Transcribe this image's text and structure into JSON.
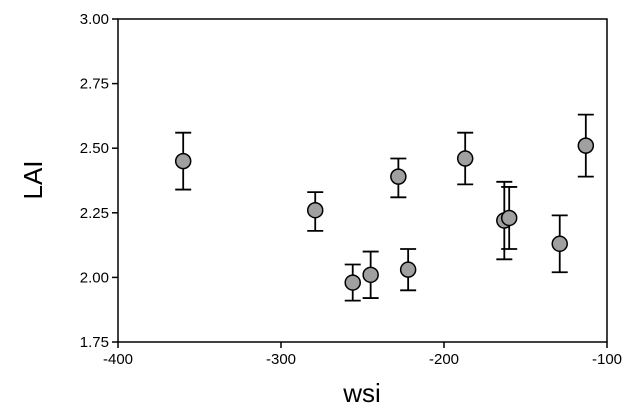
{
  "chart_data": {
    "type": "scatter",
    "title": "",
    "xlabel": "wsi",
    "ylabel": "LAI",
    "xlim": [
      -400,
      -100
    ],
    "ylim": [
      1.75,
      3.0
    ],
    "xticks": [
      -400,
      -300,
      -200,
      -100
    ],
    "yticks": [
      1.75,
      2.0,
      2.25,
      2.5,
      2.75,
      3.0
    ],
    "xtick_labels": [
      "-400",
      "-300",
      "-200",
      "-100"
    ],
    "ytick_labels": [
      "1.75",
      "2.00",
      "2.25",
      "2.50",
      "2.75",
      "3.00"
    ],
    "grid": false,
    "legend": false,
    "marker_color": "#a0a0a0",
    "series": [
      {
        "points": [
          {
            "x": -360,
            "y": 2.45,
            "err_low": 2.34,
            "err_high": 2.56
          },
          {
            "x": -279,
            "y": 2.26,
            "err_low": 2.18,
            "err_high": 2.33
          },
          {
            "x": -256,
            "y": 1.98,
            "err_low": 1.91,
            "err_high": 2.05
          },
          {
            "x": -245,
            "y": 2.01,
            "err_low": 1.92,
            "err_high": 2.1
          },
          {
            "x": -228,
            "y": 2.39,
            "err_low": 2.31,
            "err_high": 2.46
          },
          {
            "x": -222,
            "y": 2.03,
            "err_low": 1.95,
            "err_high": 2.11
          },
          {
            "x": -187,
            "y": 2.46,
            "err_low": 2.36,
            "err_high": 2.56
          },
          {
            "x": -163,
            "y": 2.22,
            "err_low": 2.07,
            "err_high": 2.37
          },
          {
            "x": -160,
            "y": 2.23,
            "err_low": 2.11,
            "err_high": 2.35
          },
          {
            "x": -129,
            "y": 2.13,
            "err_low": 2.02,
            "err_high": 2.24
          },
          {
            "x": -113,
            "y": 2.51,
            "err_low": 2.39,
            "err_high": 2.63
          }
        ]
      }
    ]
  }
}
